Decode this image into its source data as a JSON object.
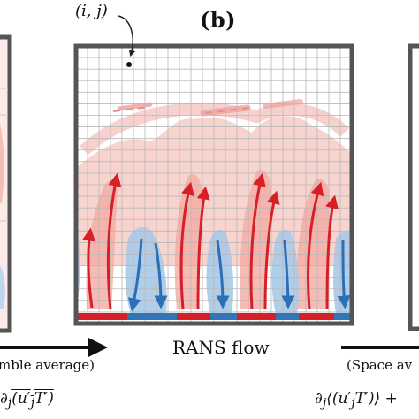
{
  "panel": {
    "label": "(b)"
  },
  "grid_point": {
    "label": "(i, j)"
  },
  "main_panel": {
    "caption": "RANS flow"
  },
  "left_panel": {
    "caption": "mble average)",
    "formula_prefix": "∂",
    "formula_sub": "j",
    "formula_overlined": "(u′",
    "formula_overlined_sub": "j",
    "formula_end": "T′)"
  },
  "right_panel": {
    "caption": "(Space av",
    "formula_prefix": "∂",
    "formula_sub": "j",
    "formula_middle": "⟨(u′",
    "formula_middle_sub": "j",
    "formula_end": "T′)⟩ +"
  },
  "colors": {
    "hot": "#e0202a",
    "hot_light": "#f4b6ae",
    "cold": "#2f78c0",
    "cold_light": "#a9cbe8",
    "frame": "#555555",
    "grid": "#b8b8b8"
  }
}
